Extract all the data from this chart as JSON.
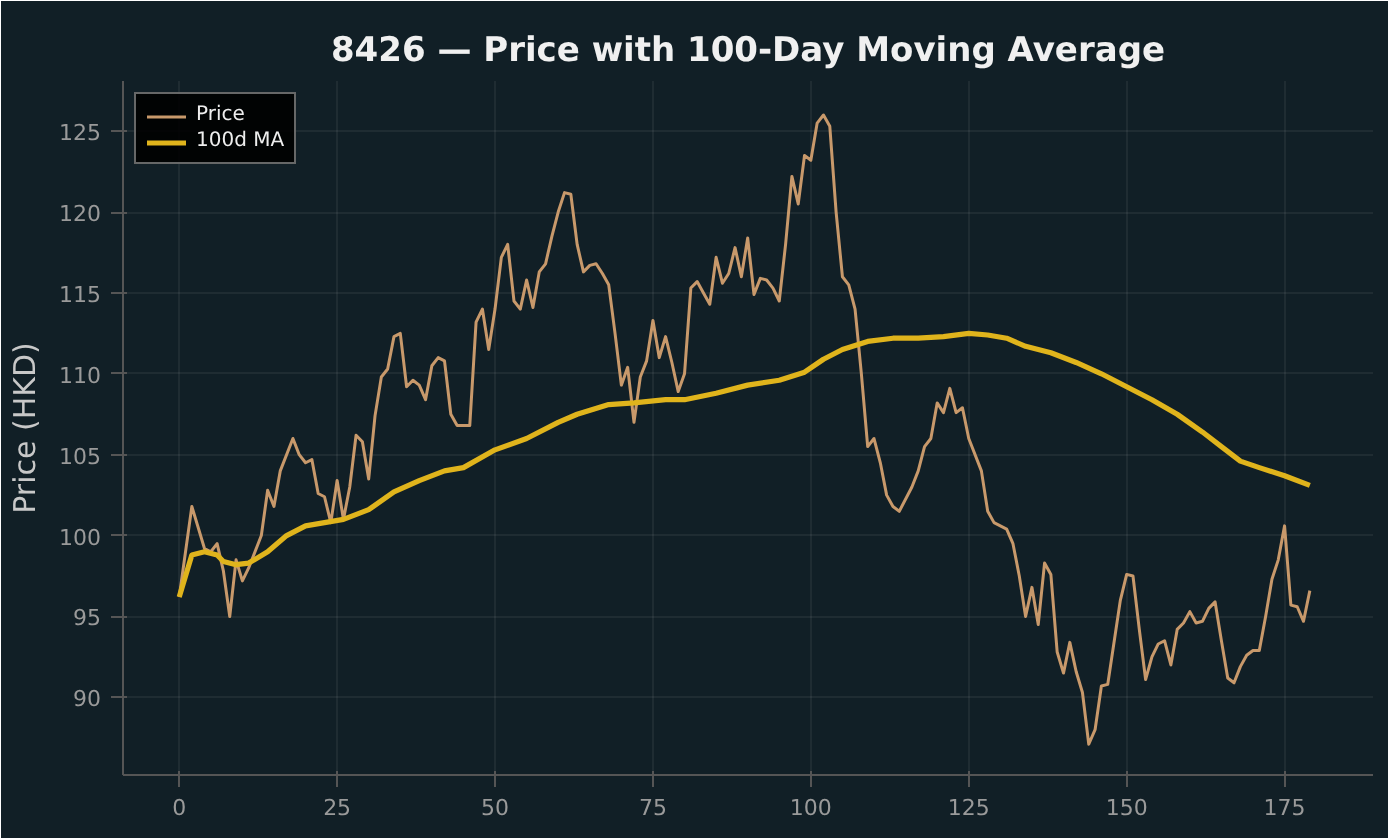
{
  "chart_data": {
    "type": "line",
    "title": "8426 — Price with 100-Day Moving Average",
    "ylabel": "Price (HKD)",
    "xlim": [
      -8.9,
      189
    ],
    "ylim": [
      85.2,
      128.1
    ],
    "xticks": [
      0,
      25,
      50,
      75,
      100,
      125,
      150,
      175
    ],
    "yticks": [
      90,
      95,
      100,
      105,
      110,
      115,
      120,
      125
    ],
    "grid": true,
    "legend": "top left",
    "series": [
      {
        "name": "Price",
        "color": "#c8996b",
        "x": [
          0,
          2,
          4,
          5,
          6,
          7,
          8,
          9,
          10,
          11,
          13,
          14,
          15,
          16,
          18,
          19,
          20,
          21,
          22,
          23,
          24,
          25,
          26,
          27,
          28,
          29,
          30,
          31,
          32,
          33,
          34,
          35,
          36,
          37,
          38,
          39,
          40,
          41,
          42,
          43,
          44,
          46,
          47,
          48,
          49,
          50,
          51,
          52,
          53,
          54,
          55,
          56,
          57,
          58,
          59,
          60,
          61,
          62,
          63,
          64,
          65,
          66,
          67,
          68,
          69,
          70,
          71,
          72,
          73,
          74,
          75,
          76,
          77,
          78,
          79,
          80,
          81,
          82,
          83,
          84,
          85,
          86,
          87,
          88,
          89,
          90,
          91,
          92,
          93,
          94,
          95,
          96,
          97,
          98,
          99,
          100,
          101,
          102,
          103,
          104,
          105,
          106,
          107,
          108,
          109,
          110,
          111,
          112,
          113,
          114,
          116,
          117,
          118,
          119,
          120,
          121,
          122,
          123,
          124,
          125,
          127,
          128,
          129,
          131,
          132,
          133,
          134,
          135,
          136,
          137,
          138,
          139,
          140,
          141,
          142,
          143,
          144,
          145,
          146,
          147,
          149,
          150,
          151,
          152,
          153,
          154,
          155,
          156,
          157,
          158,
          159,
          160,
          161,
          162,
          163,
          164,
          165,
          166,
          167,
          168,
          169,
          170,
          171,
          172,
          173,
          174,
          175,
          176,
          177,
          178,
          179
        ],
        "values": [
          96.2,
          101.8,
          99.2,
          99.0,
          99.5,
          97.8,
          95.0,
          98.5,
          97.2,
          98.0,
          100.0,
          102.8,
          101.8,
          104.0,
          106.0,
          105.0,
          104.5,
          104.7,
          102.6,
          102.4,
          100.8,
          103.4,
          101.0,
          103.0,
          106.2,
          105.8,
          103.5,
          107.4,
          109.8,
          110.3,
          112.3,
          112.5,
          109.2,
          109.6,
          109.3,
          108.4,
          110.5,
          111.0,
          110.8,
          107.5,
          106.8,
          106.8,
          113.2,
          114.0,
          111.5,
          114.0,
          117.2,
          118.0,
          114.5,
          114.0,
          115.8,
          114.1,
          116.3,
          116.8,
          118.5,
          120.0,
          121.2,
          121.1,
          118.0,
          116.3,
          116.7,
          116.8,
          116.2,
          115.5,
          112.5,
          109.3,
          110.4,
          107.0,
          109.8,
          110.8,
          113.3,
          111.0,
          112.3,
          110.7,
          108.9,
          110.0,
          115.3,
          115.7,
          115.0,
          114.3,
          117.2,
          115.6,
          116.2,
          117.8,
          116.0,
          118.4,
          114.9,
          115.9,
          115.8,
          115.3,
          114.5,
          118.0,
          122.2,
          120.5,
          123.5,
          123.2,
          125.5,
          126.0,
          125.3,
          120.0,
          116.0,
          115.5,
          114.0,
          110.0,
          105.5,
          106.0,
          104.5,
          102.5,
          101.8,
          101.5,
          103.0,
          104.0,
          105.5,
          106.0,
          108.2,
          107.6,
          109.1,
          107.6,
          107.9,
          106.0,
          104.0,
          101.5,
          100.8,
          100.4,
          99.5,
          97.5,
          95.0,
          96.8,
          94.5,
          98.3,
          97.6,
          92.8,
          91.5,
          93.4,
          91.6,
          90.3,
          87.1,
          88.0,
          90.7,
          90.8,
          96.0,
          97.6,
          97.5,
          94.2,
          91.1,
          92.5,
          93.3,
          93.5,
          92.0,
          94.2,
          94.6,
          95.3,
          94.6,
          94.7,
          95.5,
          95.9,
          93.5,
          91.2,
          90.9,
          91.9,
          92.6,
          92.9,
          92.9,
          95.0,
          97.3,
          98.5,
          100.6,
          95.7,
          95.6,
          94.7,
          96.6
        ]
      },
      {
        "name": "100d MA",
        "color": "#e0b41c",
        "x": [
          0,
          2,
          4,
          6,
          7,
          9,
          11,
          14,
          17,
          20,
          23,
          26,
          30,
          34,
          38,
          42,
          45,
          50,
          55,
          60,
          63,
          68,
          72,
          77,
          80,
          85,
          90,
          95,
          99,
          102,
          105,
          109,
          113,
          117,
          121,
          125,
          128,
          131,
          134,
          138,
          142,
          146,
          150,
          154,
          158,
          162,
          165,
          168,
          171,
          175,
          179
        ],
        "values": [
          96.2,
          98.8,
          99.0,
          98.8,
          98.4,
          98.2,
          98.3,
          99.0,
          100.0,
          100.6,
          100.8,
          101.0,
          101.6,
          102.7,
          103.4,
          104.0,
          104.2,
          105.3,
          106.0,
          107.0,
          107.5,
          108.1,
          108.2,
          108.4,
          108.4,
          108.8,
          109.3,
          109.6,
          110.1,
          110.9,
          111.5,
          112.0,
          112.2,
          112.2,
          112.3,
          112.5,
          112.4,
          112.2,
          111.7,
          111.3,
          110.7,
          110.0,
          109.2,
          108.4,
          107.5,
          106.4,
          105.5,
          104.6,
          104.2,
          103.7,
          103.1
        ]
      }
    ]
  }
}
